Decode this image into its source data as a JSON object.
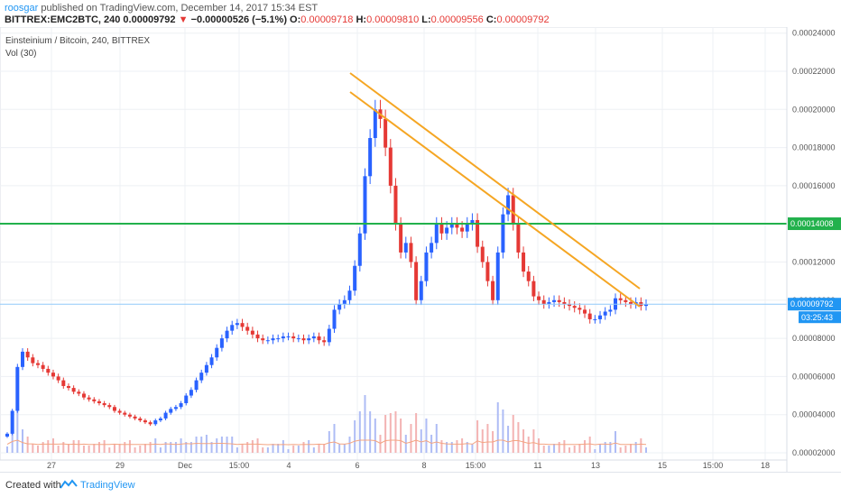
{
  "header": {
    "author": "roosgar",
    "published": "published on TradingView.com, December 14, 2017 15:34 EST",
    "symbol": "BITTREX:EMC2BTC, 240",
    "last": "0.00009792",
    "change": "−0.00000526 (−5.1%)",
    "o_label": "O:",
    "o_value": "0.00009718",
    "h_label": "H:",
    "h_value": "0.00009810",
    "l_label": "L:",
    "l_value": "0.00009556",
    "c_label": "C:",
    "c_value": "0.00009792"
  },
  "panel": {
    "title": "Einsteinium / Bitcoin, 240, BITTREX",
    "volume": "Vol (30)"
  },
  "price_axis": {
    "ticks": [
      "0.00024000",
      "0.00022000",
      "0.00020000",
      "0.00018000",
      "0.00016000",
      "0.00014000",
      "0.00012000",
      "0.00010000",
      "0.00008000",
      "0.00006000",
      "0.00004000",
      "0.00002000"
    ],
    "level_label": "0.00014008",
    "last_label": "0.00009792",
    "countdown": "03:25:43"
  },
  "time_axis": {
    "ticks": [
      "27",
      "29",
      "Dec",
      "15:00",
      "4",
      "6",
      "8",
      "15:00",
      "11",
      "13",
      "15",
      "15:00",
      "18"
    ]
  },
  "footer": {
    "created": "Created with",
    "brand": "TradingView"
  },
  "colors": {
    "up": "#2962ff",
    "down": "#e53935",
    "trendline": "#f5a623",
    "level": "#22b14c",
    "last_line": "#90caf9",
    "volume_ma": "#f4a582"
  },
  "chart_data": {
    "type": "candlestick",
    "x_range": [
      "Nov 26, 2017",
      "Dec 18, 2017"
    ],
    "y_range": [
      1e-05,
      0.00024
    ],
    "horizontal_level": 0.00014008,
    "last_price": 9.792e-05,
    "closes_approx": [
      3e-05,
      4.2e-05,
      6.5e-05,
      7.3e-05,
      7e-05,
      6.7e-05,
      6.6e-05,
      6.4e-05,
      6.2e-05,
      6e-05,
      5.8e-05,
      5.5e-05,
      5.4e-05,
      5.2e-05,
      5.1e-05,
      4.9e-05,
      4.8e-05,
      4.7e-05,
      4.6e-05,
      4.5e-05,
      4.4e-05,
      4.2e-05,
      4.1e-05,
      4e-05,
      3.9e-05,
      3.8e-05,
      3.7e-05,
      3.6e-05,
      3.5e-05,
      3.7e-05,
      3.8e-05,
      4.1e-05,
      4.3e-05,
      4.4e-05,
      4.6e-05,
      5e-05,
      5.3e-05,
      5.8e-05,
      6.2e-05,
      6.6e-05,
      7e-05,
      7.5e-05,
      8e-05,
      8.4e-05,
      8.7e-05,
      8.8e-05,
      8.6e-05,
      8.4e-05,
      8.2e-05,
      8e-05,
      7.9e-05,
      7.9e-05,
      8e-05,
      8e-05,
      8.1e-05,
      8.1e-05,
      8e-05,
      8e-05,
      7.9e-05,
      8e-05,
      8.1e-05,
      7.9e-05,
      7.8e-05,
      8.5e-05,
      9.5e-05,
      9.8e-05,
      0.0001,
      0.000105,
      0.000118,
      0.000135,
      0.000165,
      0.000185,
      0.0002,
      0.000195,
      0.00018,
      0.00016,
      0.00014,
      0.000125,
      0.00013,
      0.00012,
      0.0001,
      0.00011,
      0.000125,
      0.00013,
      0.00014,
      0.000135,
      0.000138,
      0.00014,
      0.000138,
      0.000136,
      0.00014,
      0.000142,
      0.000128,
      0.00012,
      0.00011,
      0.0001,
      0.000125,
      0.000145,
      0.000155,
      0.00014,
      0.000125,
      0.000115,
      0.00011,
      0.000102,
      0.0001,
      9.8e-05,
      9.9e-05,
      0.0001,
      9.9e-05,
      9.8e-05,
      9.7e-05,
      9.6e-05,
      9.5e-05,
      9.3e-05,
      9e-05,
      9e-05,
      9.2e-05,
      9.4e-05,
      9.5e-05,
      0.000101,
      0.0001,
      9.9e-05,
      9.8e-05,
      9.9e-05,
      9.7e-05,
      9.8e-05
    ],
    "trendlines": [
      {
        "from": [
          "Dec 5 12:00",
          0.000218
        ],
        "to": [
          "Dec 14 08:00",
          0.000103
        ]
      },
      {
        "from": [
          "Dec 5 12:00",
          0.000207
        ],
        "to": [
          "Dec 14 08:00",
          9.4e-05
        ]
      }
    ]
  }
}
